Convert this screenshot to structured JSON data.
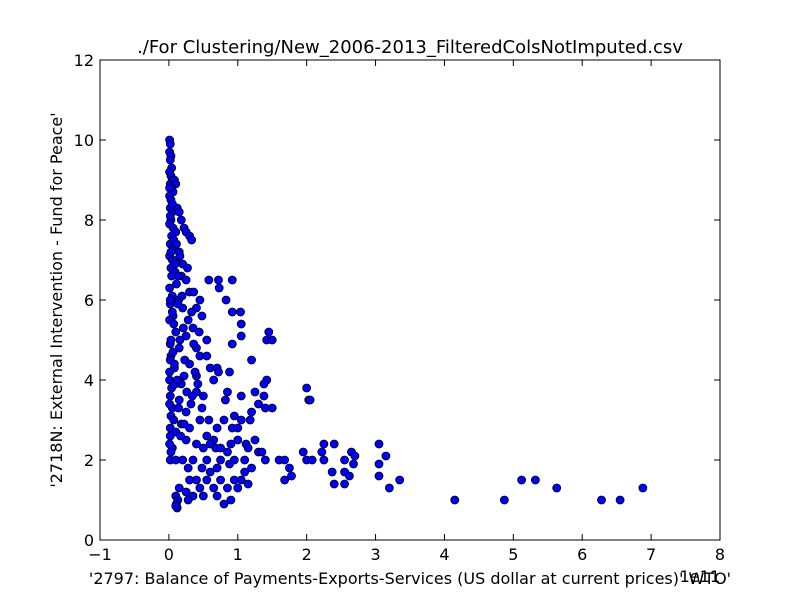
{
  "chart_data": {
    "type": "scatter",
    "title": "./For Clustering/New_2006-2013_FilteredColsNotImputed.csv",
    "xlabel": "'2797: Balance of Payments-Exports-Services (US dollar at current prices)' WTO'",
    "ylabel": "'2718N: External Intervention - Fund for Peace'",
    "x_offset_label": "1e11",
    "xlim": [
      -1,
      8
    ],
    "ylim": [
      0,
      12
    ],
    "x_scale_multiplier": 100000000000,
    "xticks": [
      -1,
      0,
      1,
      2,
      3,
      4,
      5,
      6,
      7,
      8
    ],
    "xtick_labels": [
      "−1",
      "0",
      "1",
      "2",
      "3",
      "4",
      "5",
      "6",
      "7",
      "8"
    ],
    "yticks": [
      0,
      2,
      4,
      6,
      8,
      10,
      12
    ],
    "ytick_labels": [
      "0",
      "2",
      "4",
      "6",
      "8",
      "10",
      "12"
    ],
    "grid": false,
    "marker_color": "#0000ff",
    "marker_edge": "#000000",
    "series": [
      {
        "points": [
          [
            0.01,
            10.0
          ],
          [
            0.02,
            9.9
          ],
          [
            0.01,
            9.7
          ],
          [
            0.03,
            9.6
          ],
          [
            0.02,
            9.5
          ],
          [
            0.04,
            9.3
          ],
          [
            0.01,
            9.2
          ],
          [
            0.03,
            9.1
          ],
          [
            0.05,
            9.0
          ],
          [
            0.02,
            8.9
          ],
          [
            0.08,
            9.0
          ],
          [
            0.1,
            8.9
          ],
          [
            0.04,
            8.8
          ],
          [
            0.06,
            8.7
          ],
          [
            0.01,
            8.6
          ],
          [
            0.03,
            8.5
          ],
          [
            0.02,
            8.3
          ],
          [
            0.05,
            8.2
          ],
          [
            0.12,
            8.3
          ],
          [
            0.15,
            8.2
          ],
          [
            0.18,
            8.0
          ],
          [
            0.03,
            8.0
          ],
          [
            0.01,
            7.9
          ],
          [
            0.06,
            7.8
          ],
          [
            0.22,
            7.8
          ],
          [
            0.25,
            7.7
          ],
          [
            0.3,
            7.6
          ],
          [
            0.33,
            7.5
          ],
          [
            0.1,
            7.7
          ],
          [
            0.04,
            7.6
          ],
          [
            0.02,
            7.4
          ],
          [
            0.08,
            7.3
          ],
          [
            0.15,
            7.2
          ],
          [
            0.01,
            7.1
          ],
          [
            0.05,
            7.0
          ],
          [
            0.12,
            7.0
          ],
          [
            0.2,
            6.9
          ],
          [
            0.03,
            6.8
          ],
          [
            0.09,
            6.7
          ],
          [
            0.18,
            6.6
          ],
          [
            0.25,
            6.5
          ],
          [
            0.58,
            6.5
          ],
          [
            0.72,
            6.5
          ],
          [
            0.92,
            6.5
          ],
          [
            0.73,
            6.3
          ],
          [
            0.3,
            6.2
          ],
          [
            0.36,
            6.2
          ],
          [
            0.01,
            6.3
          ],
          [
            0.05,
            6.1
          ],
          [
            0.14,
            6.0
          ],
          [
            0.45,
            6.0
          ],
          [
            0.83,
            6.0
          ],
          [
            0.02,
            5.9
          ],
          [
            0.2,
            5.8
          ],
          [
            0.4,
            5.8
          ],
          [
            0.92,
            5.7
          ],
          [
            1.04,
            5.7
          ],
          [
            0.06,
            5.6
          ],
          [
            0.28,
            5.5
          ],
          [
            0.48,
            5.6
          ],
          [
            0.35,
            5.3
          ],
          [
            1.05,
            5.4
          ],
          [
            1.45,
            5.2
          ],
          [
            0.1,
            5.2
          ],
          [
            0.25,
            5.1
          ],
          [
            1.05,
            5.1
          ],
          [
            1.42,
            5.0
          ],
          [
            1.5,
            5.0
          ],
          [
            0.55,
            5.0
          ],
          [
            0.92,
            4.9
          ],
          [
            0.02,
            4.9
          ],
          [
            0.15,
            4.8
          ],
          [
            0.4,
            4.8
          ],
          [
            0.45,
            4.6
          ],
          [
            0.55,
            4.6
          ],
          [
            1.2,
            4.5
          ],
          [
            0.03,
            4.6
          ],
          [
            0.3,
            4.4
          ],
          [
            0.6,
            4.3
          ],
          [
            0.7,
            4.3
          ],
          [
            0.72,
            4.2
          ],
          [
            0.88,
            4.2
          ],
          [
            0.08,
            4.3
          ],
          [
            0.22,
            4.1
          ],
          [
            0.4,
            4.1
          ],
          [
            0.65,
            4.0
          ],
          [
            1.42,
            4.0
          ],
          [
            1.38,
            3.9
          ],
          [
            0.01,
            4.0
          ],
          [
            0.18,
            3.9
          ],
          [
            1.25,
            3.7
          ],
          [
            0.4,
            3.7
          ],
          [
            0.85,
            3.7
          ],
          [
            2.0,
            3.8
          ],
          [
            1.38,
            3.6
          ],
          [
            1.05,
            3.6
          ],
          [
            0.5,
            3.6
          ],
          [
            0.82,
            3.5
          ],
          [
            1.3,
            3.4
          ],
          [
            2.03,
            3.5
          ],
          [
            2.05,
            3.5
          ],
          [
            0.15,
            3.5
          ],
          [
            0.32,
            3.4
          ],
          [
            0.48,
            3.3
          ],
          [
            1.4,
            3.3
          ],
          [
            1.5,
            3.3
          ],
          [
            1.2,
            3.2
          ],
          [
            0.05,
            3.3
          ],
          [
            0.25,
            3.2
          ],
          [
            0.95,
            3.1
          ],
          [
            1.05,
            3.0
          ],
          [
            0.45,
            3.0
          ],
          [
            0.58,
            3.0
          ],
          [
            0.8,
            3.0
          ],
          [
            1.18,
            3.0
          ],
          [
            0.18,
            2.9
          ],
          [
            0.3,
            2.8
          ],
          [
            0.92,
            2.8
          ],
          [
            1.0,
            2.8
          ],
          [
            0.7,
            2.8
          ],
          [
            0.02,
            2.8
          ],
          [
            0.1,
            2.7
          ],
          [
            0.55,
            2.6
          ],
          [
            0.65,
            2.5
          ],
          [
            1.0,
            2.5
          ],
          [
            1.25,
            2.5
          ],
          [
            0.25,
            2.5
          ],
          [
            0.4,
            2.4
          ],
          [
            0.6,
            2.4
          ],
          [
            0.9,
            2.4
          ],
          [
            1.12,
            2.4
          ],
          [
            2.25,
            2.4
          ],
          [
            2.4,
            2.4
          ],
          [
            3.05,
            2.4
          ],
          [
            0.05,
            2.3
          ],
          [
            0.5,
            2.3
          ],
          [
            0.68,
            2.3
          ],
          [
            0.75,
            2.3
          ],
          [
            1.15,
            2.3
          ],
          [
            1.3,
            2.2
          ],
          [
            1.35,
            2.2
          ],
          [
            0.85,
            2.2
          ],
          [
            2.22,
            2.2
          ],
          [
            2.65,
            2.2
          ],
          [
            2.7,
            2.1
          ],
          [
            1.95,
            2.2
          ],
          [
            3.15,
            2.1
          ],
          [
            0.02,
            2.0
          ],
          [
            0.1,
            2.0
          ],
          [
            0.2,
            2.0
          ],
          [
            0.35,
            2.0
          ],
          [
            0.55,
            2.0
          ],
          [
            0.75,
            2.0
          ],
          [
            0.95,
            2.0
          ],
          [
            1.1,
            2.0
          ],
          [
            1.6,
            2.0
          ],
          [
            1.68,
            2.0
          ],
          [
            2.0,
            2.0
          ],
          [
            2.08,
            2.0
          ],
          [
            2.55,
            2.0
          ],
          [
            2.25,
            2.0
          ],
          [
            2.68,
            1.9
          ],
          [
            3.05,
            1.9
          ],
          [
            1.4,
            2.0
          ],
          [
            1.75,
            1.8
          ],
          [
            2.55,
            1.7
          ],
          [
            2.62,
            1.6
          ],
          [
            2.37,
            1.7
          ],
          [
            0.28,
            1.8
          ],
          [
            0.48,
            1.8
          ],
          [
            0.7,
            1.8
          ],
          [
            0.88,
            1.9
          ],
          [
            1.2,
            1.8
          ],
          [
            1.1,
            1.7
          ],
          [
            0.6,
            1.7
          ],
          [
            1.68,
            1.5
          ],
          [
            1.78,
            1.6
          ],
          [
            2.4,
            1.4
          ],
          [
            2.55,
            1.4
          ],
          [
            3.05,
            1.6
          ],
          [
            3.35,
            1.5
          ],
          [
            3.2,
            1.3
          ],
          [
            0.3,
            1.5
          ],
          [
            0.4,
            1.5
          ],
          [
            0.55,
            1.5
          ],
          [
            0.75,
            1.5
          ],
          [
            0.95,
            1.5
          ],
          [
            1.05,
            1.5
          ],
          [
            1.15,
            1.4
          ],
          [
            0.45,
            1.3
          ],
          [
            0.65,
            1.3
          ],
          [
            0.85,
            1.3
          ],
          [
            1.0,
            1.3
          ],
          [
            0.15,
            1.3
          ],
          [
            0.25,
            1.2
          ],
          [
            0.35,
            1.1
          ],
          [
            0.5,
            1.1
          ],
          [
            0.7,
            1.1
          ],
          [
            0.9,
            1.0
          ],
          [
            0.28,
            1.0
          ],
          [
            0.8,
            0.9
          ],
          [
            0.1,
            1.1
          ],
          [
            0.13,
            1.0
          ],
          [
            0.11,
            0.9
          ],
          [
            0.12,
            0.8
          ],
          [
            0.1,
            0.85
          ],
          [
            4.15,
            1.0
          ],
          [
            4.87,
            1.0
          ],
          [
            5.12,
            1.5
          ],
          [
            5.32,
            1.5
          ],
          [
            5.63,
            1.3
          ],
          [
            6.28,
            1.0
          ],
          [
            6.55,
            1.0
          ],
          [
            6.88,
            1.3
          ],
          [
            0.02,
            6.0
          ],
          [
            0.01,
            5.5
          ],
          [
            0.03,
            5.0
          ],
          [
            0.02,
            4.5
          ],
          [
            0.01,
            4.2
          ],
          [
            0.04,
            3.8
          ],
          [
            0.02,
            3.6
          ],
          [
            0.01,
            3.4
          ],
          [
            0.03,
            3.1
          ],
          [
            0.02,
            2.6
          ],
          [
            0.01,
            2.4
          ],
          [
            0.03,
            2.2
          ],
          [
            0.05,
            5.7
          ],
          [
            0.07,
            5.4
          ],
          [
            0.06,
            4.7
          ],
          [
            0.08,
            4.4
          ],
          [
            0.09,
            3.9
          ],
          [
            0.07,
            3.0
          ],
          [
            0.11,
            6.4
          ],
          [
            0.13,
            5.9
          ],
          [
            0.16,
            5.0
          ],
          [
            0.12,
            4.0
          ],
          [
            0.14,
            3.3
          ],
          [
            0.17,
            2.6
          ],
          [
            0.19,
            6.1
          ],
          [
            0.21,
            5.3
          ],
          [
            0.23,
            4.5
          ],
          [
            0.26,
            3.7
          ],
          [
            0.22,
            2.9
          ],
          [
            0.33,
            5.7
          ],
          [
            0.36,
            4.9
          ],
          [
            0.38,
            4.2
          ],
          [
            0.34,
            3.6
          ],
          [
            0.42,
            3.9
          ],
          [
            0.44,
            5.2
          ],
          [
            0.27,
            6.8
          ],
          [
            0.05,
            8.4
          ],
          [
            0.07,
            7.5
          ],
          [
            0.09,
            6.9
          ],
          [
            0.11,
            7.4
          ],
          [
            0.13,
            6.6
          ],
          [
            0.16,
            7.1
          ],
          [
            0.01,
            8.8
          ],
          [
            0.02,
            8.1
          ],
          [
            0.03,
            7.2
          ],
          [
            0.04,
            6.6
          ]
        ]
      }
    ]
  }
}
